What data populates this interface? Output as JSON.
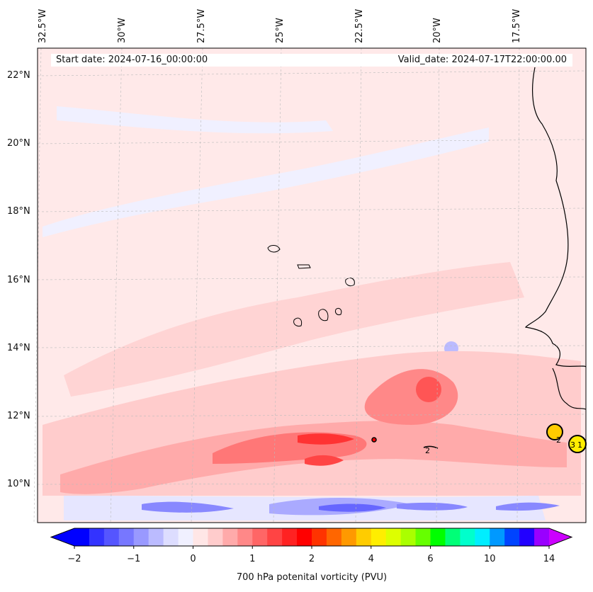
{
  "map": {
    "start_date": "Start date: 2024-07-16_00:00:00",
    "valid_date": "Valid_date: 2024-07-17T22:00:00.00",
    "lon_labels": [
      "32.5°W",
      "30°W",
      "27.5°W",
      "25°W",
      "22.5°W",
      "20°W",
      "17.5°W"
    ],
    "lat_labels": [
      "22°N",
      "20°N",
      "18°N",
      "16°N",
      "14°N",
      "12°N",
      "10°N"
    ],
    "contour_labels": [
      "2",
      "3",
      "1",
      "2"
    ]
  },
  "colorbar": {
    "title": "700 hPa potenital vorticity (PVU)",
    "tick_labels": [
      "−2",
      "−1",
      "0",
      "1",
      "2",
      "4",
      "6",
      "10",
      "14"
    ],
    "colors": [
      "#0000ff",
      "#3333ff",
      "#5555ff",
      "#7777ff",
      "#9999ff",
      "#bbbbff",
      "#ddddff",
      "#f0f0ff",
      "#ffe6e6",
      "#ffcccc",
      "#ffaaaa",
      "#ff8888",
      "#ff6666",
      "#ff4444",
      "#ff2222",
      "#ff0000",
      "#ff3300",
      "#ff6600",
      "#ff9900",
      "#ffcc00",
      "#ffee00",
      "#ddff00",
      "#aaff00",
      "#66ff00",
      "#00ff00",
      "#00ff77",
      "#00ffcc",
      "#00eeff",
      "#0099ff",
      "#0044ff",
      "#2200ff",
      "#9900ff"
    ],
    "extend_low_color": "#0000ff",
    "extend_high_color": "#cc00ff"
  }
}
